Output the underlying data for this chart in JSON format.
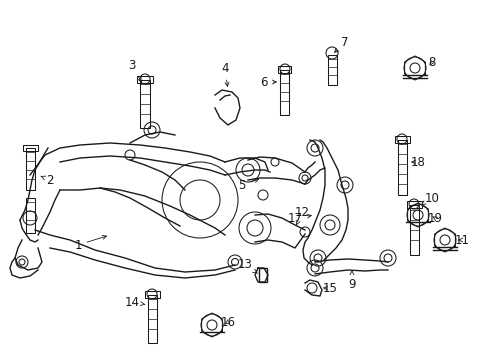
{
  "background_color": "#ffffff",
  "line_color": "#1a1a1a",
  "text_color": "#1a1a1a",
  "fig_width": 4.89,
  "fig_height": 3.6,
  "dpi": 100,
  "font_size": 8.5,
  "lw_main": 1.0,
  "lw_part": 0.75
}
